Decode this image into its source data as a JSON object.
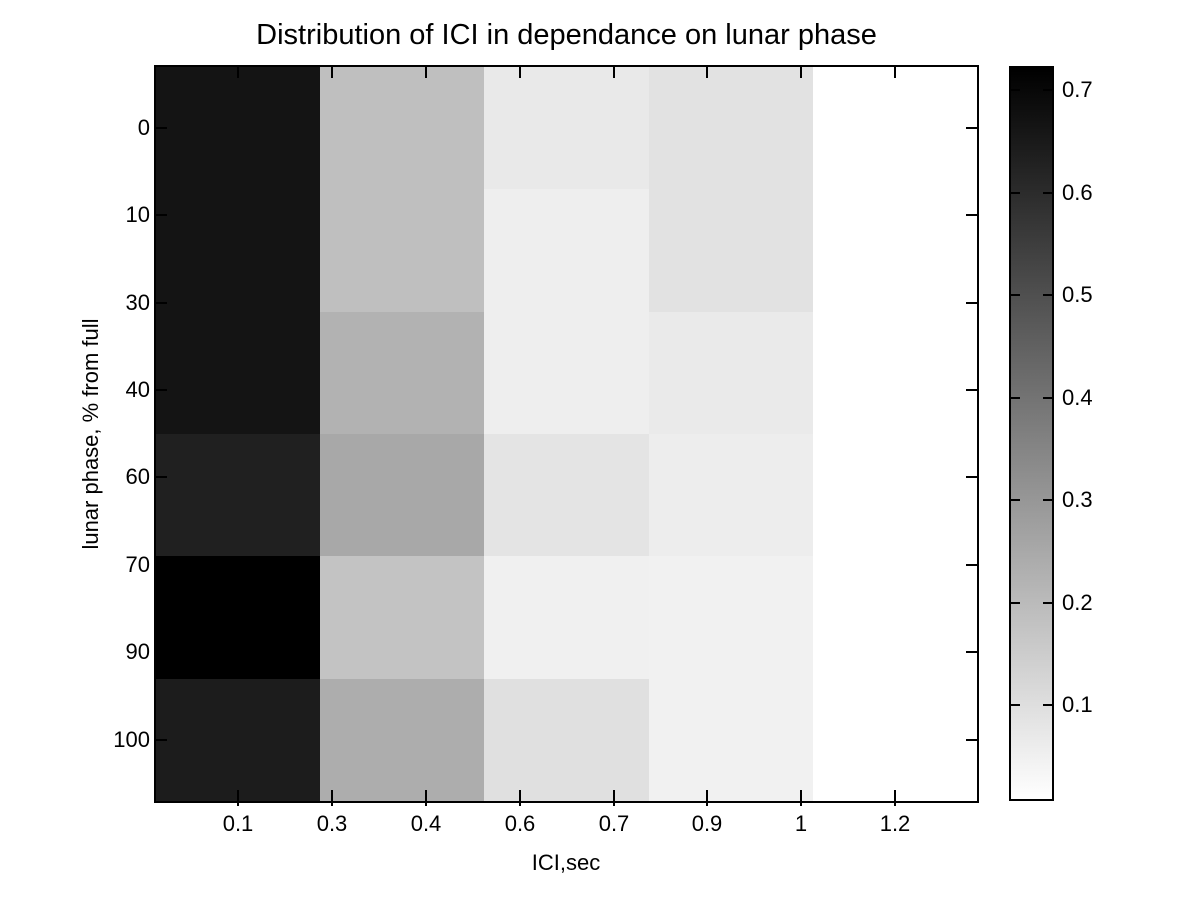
{
  "chart_data": {
    "type": "heatmap",
    "title": "Distribution of ICI in dependance on lunar phase",
    "xlabel": "ICI,sec",
    "ylabel": "lunar phase, % from full",
    "x_tick_labels": [
      "0.1",
      "0.3",
      "0.4",
      "0.6",
      "0.7",
      "0.9",
      "1",
      "1.2"
    ],
    "y_tick_labels": [
      "0",
      "10",
      "30",
      "40",
      "60",
      "70",
      "90",
      "100"
    ],
    "grid_lines": false,
    "rows": 6,
    "cols": 5,
    "values": [
      [
        0.66,
        0.19,
        0.07,
        0.09,
        0.01
      ],
      [
        0.66,
        0.19,
        0.06,
        0.09,
        0.01
      ],
      [
        0.66,
        0.22,
        0.06,
        0.07,
        0.01
      ],
      [
        0.62,
        0.25,
        0.08,
        0.06,
        0.01
      ],
      [
        0.72,
        0.17,
        0.05,
        0.05,
        0.01
      ],
      [
        0.63,
        0.24,
        0.09,
        0.05,
        0.01
      ]
    ],
    "cell_colors": [
      [
        "#141414",
        "#bfbfbf",
        "#e9e9e9",
        "#e2e2e2",
        "#ffffff"
      ],
      [
        "#141414",
        "#bfbfbf",
        "#eeeeee",
        "#e2e2e2",
        "#ffffff"
      ],
      [
        "#141414",
        "#b2b2b2",
        "#eeeeee",
        "#eaeaea",
        "#ffffff"
      ],
      [
        "#202020",
        "#a8a8a8",
        "#e4e4e4",
        "#ededed",
        "#ffffff"
      ],
      [
        "#000000",
        "#c3c3c3",
        "#f0f0f0",
        "#f1f1f1",
        "#ffffff"
      ],
      [
        "#1c1c1c",
        "#adadad",
        "#e0e0e0",
        "#f1f1f1",
        "#ffffff"
      ]
    ],
    "colorbar": {
      "tick_labels": [
        "0.7",
        "0.6",
        "0.5",
        "0.4",
        "0.3",
        "0.2",
        "0.1"
      ],
      "top_value": 0.72,
      "bottom_value": 0,
      "top_color": "#000000",
      "bottom_color": "#ffffff",
      "colormap": "reversed-grayscale-high-is-black"
    },
    "axis_color": "#000000",
    "background_color": "#ffffff"
  }
}
